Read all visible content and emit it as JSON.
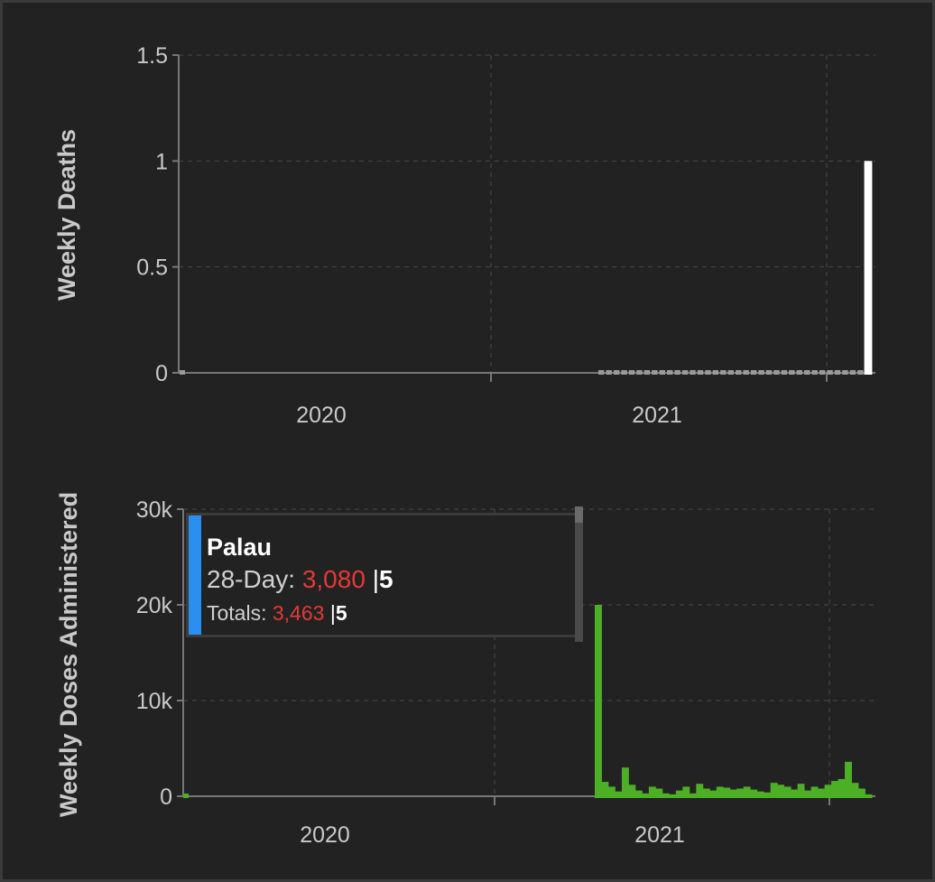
{
  "chart_data": [
    {
      "type": "bar",
      "ylabel": "Weekly Deaths",
      "ylim": [
        0,
        1.5
      ],
      "y_ticks": [
        "0",
        "0.5",
        "1",
        "1.5"
      ],
      "x_ticks": [
        "2020",
        "2021"
      ],
      "grid": true,
      "bar_color": "#ffffff",
      "zero_marker_color": "#9a9a9a",
      "start_label": "2020-01",
      "weeks_2021_start_index": 34,
      "values": [
        0,
        0,
        0,
        0,
        0,
        0,
        0,
        0,
        0,
        0,
        0,
        0,
        0,
        0,
        0,
        0,
        0,
        0,
        0,
        0,
        0,
        0,
        0,
        0,
        0,
        0,
        0,
        0,
        0,
        0,
        0,
        0,
        0,
        0,
        0,
        0,
        1
      ]
    },
    {
      "type": "bar",
      "ylabel": "Weekly Doses Administered",
      "ylim": [
        0,
        30000
      ],
      "y_ticks": [
        "0",
        "10k",
        "20k",
        "30k"
      ],
      "x_ticks": [
        "2020",
        "2021"
      ],
      "grid": true,
      "bar_color": "#4caf25",
      "values": [
        0,
        20000,
        1500,
        1000,
        500,
        3000,
        1200,
        600,
        300,
        1000,
        800,
        300,
        200,
        600,
        1000,
        300,
        1300,
        800,
        600,
        1000,
        900,
        700,
        800,
        1000,
        700,
        500,
        400,
        1400,
        1200,
        1000,
        700,
        1300,
        600,
        1000,
        800,
        1200,
        1600,
        1800,
        3600,
        1400,
        800,
        200
      ]
    }
  ],
  "tooltip": {
    "country": "Palau",
    "row1_label": "28-Day:",
    "row1_value": "3,080",
    "row1_sep": "|",
    "row1_rank": "5",
    "row2_label": "Totals:",
    "row2_value": "3,463",
    "row2_sep": "|",
    "row2_rank": "5",
    "accent_color": "#2a8ff0",
    "value_color": "#e53935"
  }
}
